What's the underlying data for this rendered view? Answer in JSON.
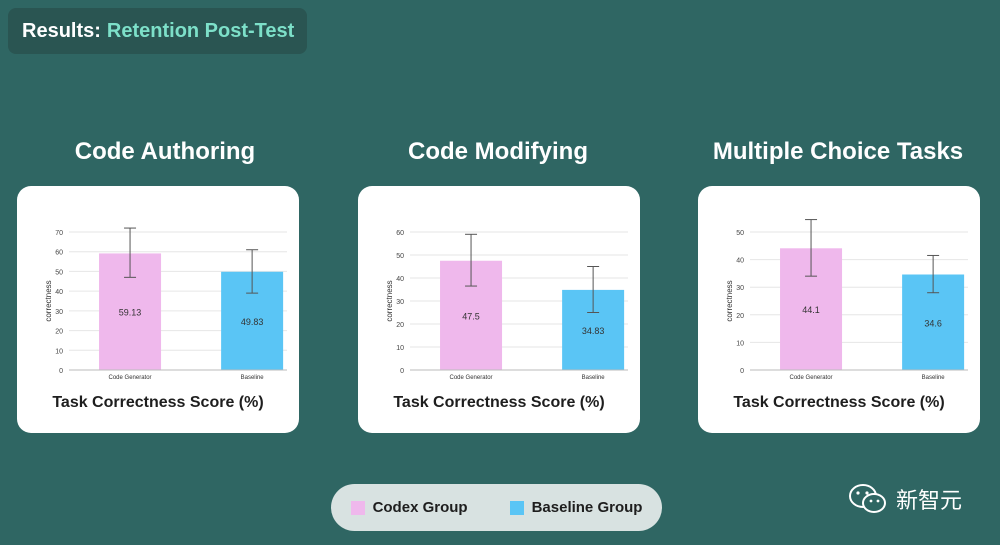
{
  "header": {
    "prefix": "Results:",
    "title": "Retention Post-Test"
  },
  "colors": {
    "codex": "#efb8ec",
    "baseline": "#5ac5f5",
    "accent": "#7de0c9"
  },
  "chart_data": [
    {
      "type": "bar",
      "title": "Code Authoring",
      "caption": "Task Correctness Score (%)",
      "ylabel": "correctness",
      "categories": [
        "Code Generator",
        "Baseline"
      ],
      "values": [
        59.13,
        49.83
      ],
      "value_labels": [
        "59.13",
        "49.83"
      ],
      "error_low": [
        47,
        39
      ],
      "error_high": [
        72,
        61
      ],
      "ylim": [
        0,
        70
      ],
      "yticks": [
        0,
        10,
        20,
        30,
        40,
        50,
        60,
        70
      ]
    },
    {
      "type": "bar",
      "title": "Code Modifying",
      "caption": "Task Correctness Score (%)",
      "ylabel": "correctness",
      "categories": [
        "Code Generator",
        "Baseline"
      ],
      "values": [
        47.5,
        34.83
      ],
      "value_labels": [
        "47.5",
        "34.83"
      ],
      "error_low": [
        36.5,
        25
      ],
      "error_high": [
        59,
        45
      ],
      "ylim": [
        0,
        60
      ],
      "yticks": [
        0,
        10,
        20,
        30,
        40,
        50,
        60
      ]
    },
    {
      "type": "bar",
      "title": "Multiple Choice Tasks",
      "caption": "Task Correctness Score (%)",
      "ylabel": "correctness",
      "categories": [
        "Code Generator",
        "Baseline"
      ],
      "values": [
        44.1,
        34.6
      ],
      "value_labels": [
        "44.1",
        "34.6"
      ],
      "error_low": [
        34,
        28
      ],
      "error_high": [
        54.5,
        41.5
      ],
      "ylim": [
        0,
        50
      ],
      "yticks": [
        0,
        10,
        20,
        30,
        40,
        50
      ]
    }
  ],
  "legend": {
    "codex": "Codex Group",
    "baseline": "Baseline Group"
  },
  "watermark": {
    "text": "新智元",
    "icon": "wechat-icon"
  }
}
